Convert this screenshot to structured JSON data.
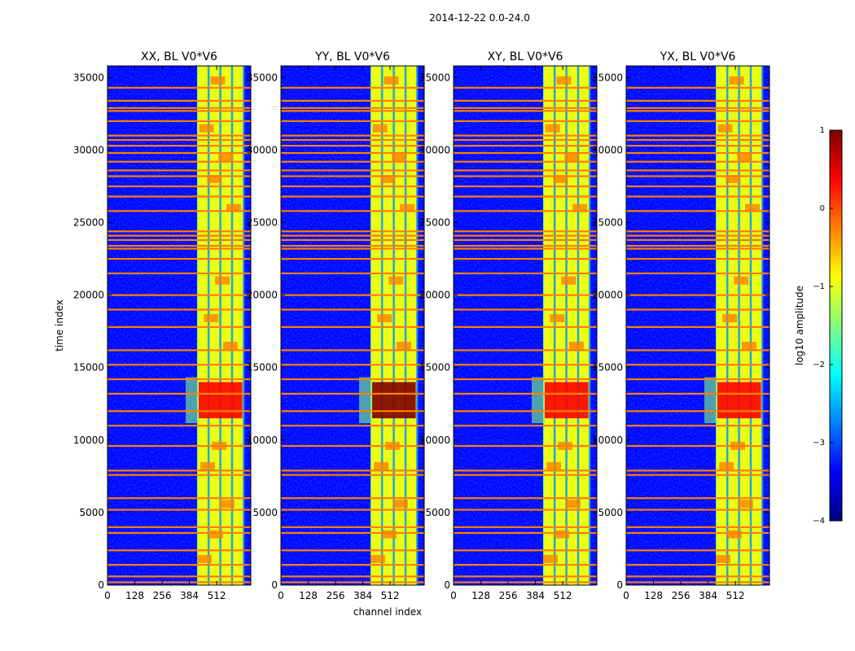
{
  "chart_data": {
    "type": "heatmap",
    "suptitle": "2014-12-22 0.0-24.0",
    "xlabel": "channel index",
    "ylabel": "time index",
    "xlim": [
      0,
      672
    ],
    "ylim": [
      0,
      35800
    ],
    "xticks": [
      0,
      128,
      256,
      384,
      512
    ],
    "yticks": [
      0,
      5000,
      10000,
      15000,
      20000,
      25000,
      30000,
      35000
    ],
    "panels": [
      {
        "title": "XX, BL V0*V6",
        "peak_log10_amplitude": 0.3
      },
      {
        "title": "YY, BL V0*V6",
        "peak_log10_amplitude": 0.8
      },
      {
        "title": "XY, BL V0*V6",
        "peak_log10_amplitude": 0.4
      },
      {
        "title": "YX, BL V0*V6",
        "peak_log10_amplitude": 0.4
      }
    ],
    "signal_band": {
      "channel_start": 420,
      "channel_end": 640,
      "peak_time_start": 11500,
      "peak_time_end": 14000
    },
    "background_log10_amplitude": -3.2,
    "flagged_rows_time_index": [
      200,
      600,
      1400,
      2400,
      3600,
      4000,
      5200,
      6000,
      7600,
      7900,
      9600,
      11000,
      12000,
      13200,
      14200,
      15200,
      16200,
      17800,
      19000,
      20000,
      21500,
      22500,
      23200,
      23400,
      23800,
      24100,
      24400,
      25800,
      26800,
      27500,
      28200,
      28600,
      29200,
      29800,
      30300,
      30700,
      31000,
      32000,
      32700,
      32900,
      33400,
      34300
    ],
    "colorbar": {
      "label": "log10 amplitude",
      "range": [
        -4,
        1
      ],
      "ticks": [
        1,
        0,
        -1,
        -2,
        -3,
        -4
      ],
      "tick_labels": [
        "1",
        "0",
        "−1",
        "−2",
        "−3",
        "−4"
      ],
      "colormap": [
        "#00007f",
        "#0000ff",
        "#007fff",
        "#00ffff",
        "#7fff7f",
        "#ffff00",
        "#ff7f00",
        "#ff0000",
        "#7f0000"
      ]
    }
  }
}
